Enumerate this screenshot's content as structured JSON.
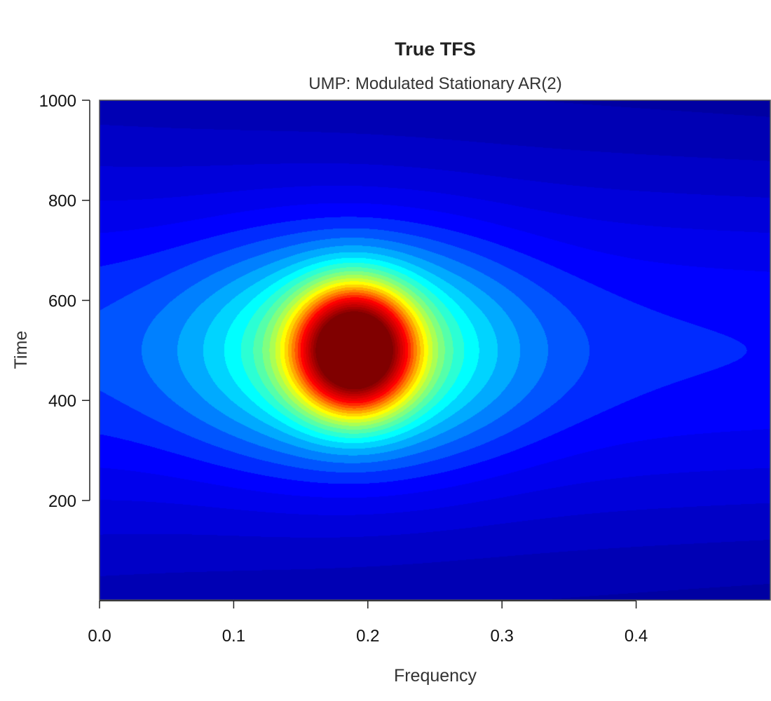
{
  "chart_data": {
    "type": "heatmap",
    "title": "True TFS",
    "subtitle": "UMP: Modulated Stationary AR(2)",
    "xlabel": "Frequency",
    "ylabel": "Time",
    "xlim": [
      0.0,
      0.5
    ],
    "ylim": [
      1,
      1000
    ],
    "x_ticks": [
      0.0,
      0.1,
      0.2,
      0.3,
      0.4
    ],
    "x_tick_labels": [
      "0.0",
      "0.1",
      "0.2",
      "0.3",
      "0.4"
    ],
    "y_ticks": [
      200,
      400,
      600,
      800,
      1000
    ],
    "y_tick_labels": [
      "200",
      "400",
      "600",
      "800",
      "1000"
    ],
    "peak": {
      "frequency": 0.19,
      "time": 500
    },
    "colormap": [
      "#00008F",
      "#0000FF",
      "#00FFFF",
      "#FFFF00",
      "#FF0000",
      "#800000"
    ],
    "grid": false,
    "legend": "none"
  }
}
